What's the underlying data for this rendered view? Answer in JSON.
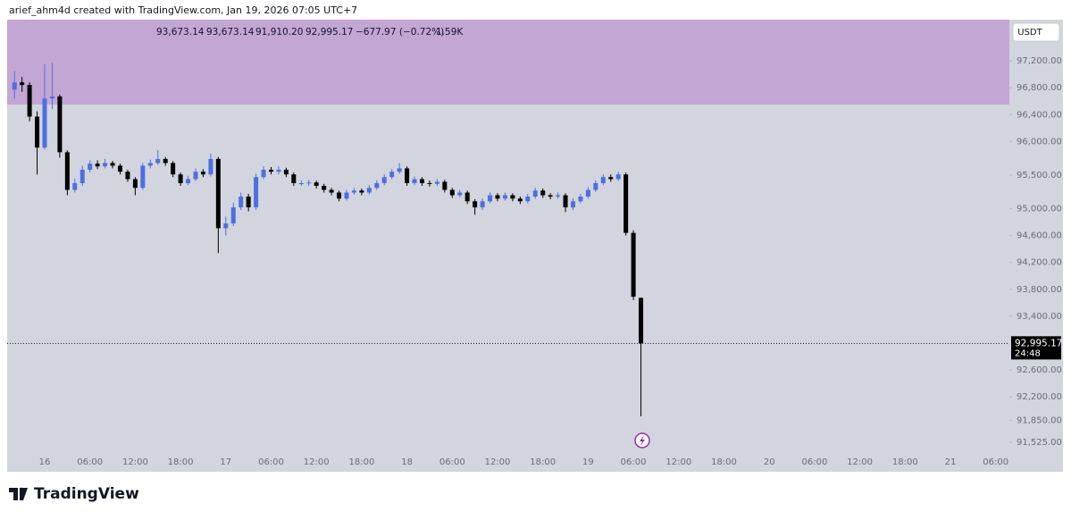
{
  "header": {
    "caption": "arief_ahm4d created with TradingView.com, Jan 19, 2026 07:05 UTC+7",
    "brand": "TradingView"
  },
  "chart_data": {
    "type": "candlestick",
    "ohlc_header": [
      "93,673.14",
      "93,673.14",
      "91,910.20",
      "92,995.17",
      "−677.97 (−0.72%)",
      "1.59K"
    ],
    "currency": "USDT",
    "last_label": "92,995.17",
    "countdown": "24:48",
    "x_labels": [
      "16",
      "06:00",
      "12:00",
      "18:00",
      "17",
      "06:00",
      "12:00",
      "18:00",
      "18",
      "06:00",
      "12:00",
      "18:00",
      "19",
      "06:00",
      "12:00",
      "18:00",
      "20",
      "06:00",
      "12:00",
      "18:00",
      "21",
      "06:00"
    ],
    "open": [
      96770,
      96880,
      96840,
      96370,
      95910,
      96640,
      96670,
      95840,
      95280,
      95380,
      95580,
      95670,
      95630,
      95680,
      95640,
      95550,
      95440,
      95310,
      95640,
      95680,
      95740,
      95680,
      95510,
      95380,
      95440,
      95550,
      95510,
      95740,
      94710,
      94780,
      95020,
      95180,
      95020,
      95470,
      95580,
      95550,
      95580,
      95510,
      95380,
      95380,
      95390,
      95340,
      95280,
      95240,
      95150,
      95240,
      95270,
      95240,
      95310,
      95380,
      95470,
      95550,
      95600,
      95380,
      95440,
      95380,
      95370,
      95400,
      95280,
      95200,
      95240,
      95110,
      95020,
      95110,
      95200,
      95150,
      95200,
      95150,
      95110,
      95180,
      95270,
      95200,
      95180,
      95200,
      95020,
      95110,
      95180,
      95280,
      95380,
      95470,
      95440,
      95510,
      94640,
      93673.14
    ],
    "high": [
      97050,
      96960,
      96880,
      96450,
      97150,
      97170,
      96700,
      95870,
      95450,
      95640,
      95720,
      95720,
      95740,
      95710,
      95670,
      95580,
      95470,
      95680,
      95730,
      95870,
      95770,
      95710,
      95540,
      95490,
      95600,
      95590,
      95820,
      95770,
      94880,
      95090,
      95240,
      95220,
      95520,
      95630,
      95620,
      95630,
      95610,
      95540,
      95420,
      95430,
      95420,
      95370,
      95310,
      95270,
      95280,
      95310,
      95300,
      95350,
      95420,
      95510,
      95590,
      95680,
      95630,
      95480,
      95470,
      95420,
      95440,
      95430,
      95310,
      95280,
      95270,
      95140,
      95150,
      95240,
      95230,
      95240,
      95230,
      95180,
      95220,
      95310,
      95300,
      95230,
      95240,
      95230,
      95150,
      95220,
      95320,
      95420,
      95510,
      95510,
      95550,
      95540,
      94680,
      93673.14
    ],
    "low": [
      96640,
      96740,
      96300,
      95510,
      95880,
      96480,
      95760,
      95200,
      95240,
      95340,
      95540,
      95590,
      95600,
      95600,
      95510,
      95400,
      95200,
      95280,
      95600,
      95650,
      95640,
      95470,
      95340,
      95350,
      95410,
      95470,
      95480,
      94340,
      94600,
      94740,
      94980,
      94960,
      94980,
      95440,
      95510,
      95510,
      95470,
      95340,
      95340,
      95340,
      95300,
      95240,
      95200,
      95110,
      95120,
      95210,
      95200,
      95210,
      95280,
      95350,
      95440,
      95520,
      95340,
      95350,
      95340,
      95330,
      95340,
      95240,
      95160,
      95170,
      95070,
      94910,
      94980,
      95080,
      95110,
      95120,
      95110,
      95070,
      95080,
      95150,
      95160,
      95140,
      95150,
      94950,
      94980,
      95080,
      95150,
      95250,
      95350,
      95400,
      95410,
      94600,
      93640,
      91910.2
    ],
    "close": [
      96880,
      96840,
      96370,
      95910,
      96640,
      96670,
      95840,
      95280,
      95380,
      95580,
      95670,
      95630,
      95680,
      95640,
      95550,
      95440,
      95310,
      95640,
      95680,
      95740,
      95680,
      95510,
      95380,
      95440,
      95550,
      95510,
      95740,
      94710,
      94780,
      95020,
      95180,
      95020,
      95470,
      95580,
      95550,
      95580,
      95510,
      95380,
      95380,
      95390,
      95340,
      95280,
      95240,
      95150,
      95240,
      95270,
      95240,
      95310,
      95380,
      95470,
      95550,
      95600,
      95380,
      95440,
      95380,
      95370,
      95400,
      95280,
      95200,
      95240,
      95110,
      95020,
      95110,
      95200,
      95150,
      95200,
      95150,
      95110,
      95180,
      95270,
      95200,
      95180,
      95200,
      95020,
      95110,
      95180,
      95280,
      95380,
      95470,
      95440,
      95510,
      94640,
      93690,
      92995.17
    ],
    "up_color": "#4c6fe2",
    "down_color": "#000000",
    "ylim": [
      91085,
      97813
    ],
    "yticks": [
      {
        "value": 97200,
        "label": "97,200.00"
      },
      {
        "value": 96800,
        "label": "96,800.00"
      },
      {
        "value": 96400,
        "label": "96,400.00"
      },
      {
        "value": 96000,
        "label": "96,000.00"
      },
      {
        "value": 95500,
        "label": "95,500.00"
      },
      {
        "value": 95000,
        "label": "95,000.00"
      },
      {
        "value": 94600,
        "label": "94,600.00"
      },
      {
        "value": 94200,
        "label": "94,200.00"
      },
      {
        "value": 93800,
        "label": "93,800.00"
      },
      {
        "value": 93400,
        "label": "93,400.00"
      },
      {
        "value": 92600,
        "label": "92,600.00"
      },
      {
        "value": 92200,
        "label": "92,200.00"
      },
      {
        "value": 91850,
        "label": "91,850.00"
      },
      {
        "value": 91525,
        "label": "91,525.00"
      }
    ],
    "zones": [
      {
        "low": 96550,
        "high": 97813,
        "color": "#c3a6d4"
      }
    ]
  }
}
